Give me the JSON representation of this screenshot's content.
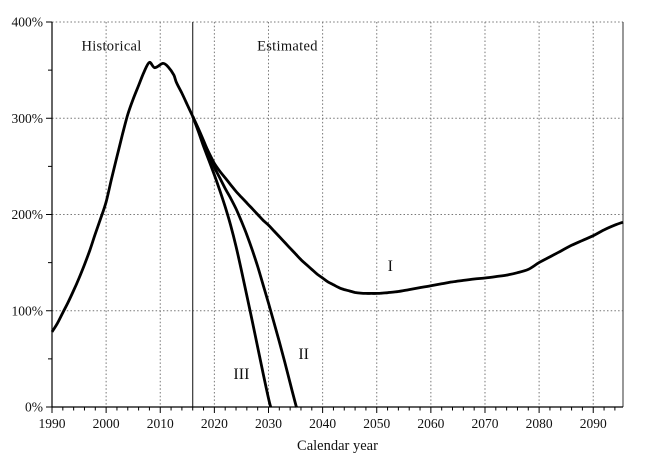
{
  "figure": {
    "background": "#ffffff",
    "labels": {
      "historical": "Historical",
      "estimated": "Estimated",
      "series_I": "I",
      "series_II": "II",
      "series_III": "III"
    }
  },
  "chart_data": {
    "type": "line",
    "title": "",
    "xlabel": "Calendar year",
    "ylabel": "",
    "x_range": [
      1990,
      2095.5
    ],
    "y_range_pct": [
      0,
      400
    ],
    "grid": "dotted",
    "legend": "none",
    "boundary_year": 2016,
    "line_color": "#000000",
    "grid_color": "#777777",
    "x_ticks": [
      {
        "year": 1990,
        "label": "1990"
      },
      {
        "year": 2000,
        "label": "2000"
      },
      {
        "year": 2010,
        "label": "2010"
      },
      {
        "year": 2020,
        "label": "2020"
      },
      {
        "year": 2030,
        "label": "2030"
      },
      {
        "year": 2040,
        "label": "2040"
      },
      {
        "year": 2050,
        "label": "2050"
      },
      {
        "year": 2060,
        "label": "2060"
      },
      {
        "year": 2070,
        "label": "2070"
      },
      {
        "year": 2080,
        "label": "2080"
      },
      {
        "year": 2090,
        "label": "2090"
      }
    ],
    "y_ticks": [
      {
        "pct": 0,
        "label": "0%"
      },
      {
        "pct": 100,
        "label": "100%"
      },
      {
        "pct": 200,
        "label": "200%"
      },
      {
        "pct": 300,
        "label": "300%"
      },
      {
        "pct": 400,
        "label": "400%"
      }
    ],
    "x_minor_step": 2,
    "y_minor_step": 50,
    "annotations": [
      {
        "key": "historical",
        "text": "Historical",
        "year": 2001,
        "pct": 374,
        "class": "section"
      },
      {
        "key": "estimated",
        "text": "Estimated",
        "year": 2033.5,
        "pct": 374,
        "class": "section"
      },
      {
        "key": "series_I",
        "text": "I",
        "year": 2052.5,
        "pct": 145,
        "class": "series"
      },
      {
        "key": "series_II",
        "text": "II",
        "year": 2036.5,
        "pct": 54,
        "class": "series"
      },
      {
        "key": "series_III",
        "text": "III",
        "year": 2025,
        "pct": 33,
        "class": "series"
      }
    ],
    "series": [
      {
        "name": "Historical",
        "points": [
          [
            1990,
            78
          ],
          [
            1991,
            87
          ],
          [
            1992,
            98
          ],
          [
            1993,
            109
          ],
          [
            1994,
            121
          ],
          [
            1995,
            134
          ],
          [
            1996,
            148
          ],
          [
            1997,
            163
          ],
          [
            1998,
            180
          ],
          [
            1999,
            196
          ],
          [
            2000,
            213
          ],
          [
            2001,
            237
          ],
          [
            2002,
            260
          ],
          [
            2003,
            283
          ],
          [
            2004,
            304
          ],
          [
            2005,
            320
          ],
          [
            2006,
            334
          ],
          [
            2007,
            348
          ],
          [
            2008,
            358
          ],
          [
            2009,
            352.5
          ],
          [
            2010.5,
            357
          ],
          [
            2011.5,
            353
          ],
          [
            2012.5,
            345
          ],
          [
            2013,
            337
          ],
          [
            2014,
            326
          ],
          [
            2015,
            314
          ],
          [
            2016,
            302
          ]
        ]
      },
      {
        "name": "I",
        "points": [
          [
            2016,
            302
          ],
          [
            2017,
            289
          ],
          [
            2018,
            276
          ],
          [
            2019,
            264
          ],
          [
            2020,
            253
          ],
          [
            2021,
            245
          ],
          [
            2022,
            238
          ],
          [
            2023,
            231
          ],
          [
            2024,
            224
          ],
          [
            2025,
            218
          ],
          [
            2026,
            212
          ],
          [
            2027,
            206
          ],
          [
            2028,
            200
          ],
          [
            2029,
            194
          ],
          [
            2030,
            189
          ],
          [
            2031,
            183
          ],
          [
            2032,
            177
          ],
          [
            2033,
            171
          ],
          [
            2034,
            165
          ],
          [
            2035,
            159
          ],
          [
            2036,
            153
          ],
          [
            2037,
            148
          ],
          [
            2038,
            143
          ],
          [
            2039,
            138
          ],
          [
            2040,
            134
          ],
          [
            2041,
            130
          ],
          [
            2042,
            127
          ],
          [
            2043,
            124
          ],
          [
            2044,
            122
          ],
          [
            2045,
            120.5
          ],
          [
            2046,
            119
          ],
          [
            2047,
            118.3
          ],
          [
            2048,
            118
          ],
          [
            2049,
            118
          ],
          [
            2050,
            118
          ],
          [
            2051,
            118.3
          ],
          [
            2052,
            118.8
          ],
          [
            2054,
            120
          ],
          [
            2056,
            122
          ],
          [
            2058,
            124
          ],
          [
            2060,
            126
          ],
          [
            2062,
            128
          ],
          [
            2064,
            130
          ],
          [
            2066,
            131.5
          ],
          [
            2068,
            133
          ],
          [
            2070,
            134
          ],
          [
            2072,
            135.5
          ],
          [
            2074,
            137
          ],
          [
            2076,
            139.5
          ],
          [
            2078,
            143
          ],
          [
            2080,
            150
          ],
          [
            2082,
            156
          ],
          [
            2084,
            162
          ],
          [
            2086,
            168
          ],
          [
            2088,
            173
          ],
          [
            2090,
            178
          ],
          [
            2092,
            184
          ],
          [
            2094,
            189
          ],
          [
            2095.5,
            192
          ]
        ]
      },
      {
        "name": "II",
        "points": [
          [
            2016,
            302
          ],
          [
            2017,
            290
          ],
          [
            2018,
            277
          ],
          [
            2019,
            263
          ],
          [
            2020,
            249
          ],
          [
            2021,
            238
          ],
          [
            2022,
            227
          ],
          [
            2023,
            217
          ],
          [
            2024,
            206
          ],
          [
            2025,
            193
          ],
          [
            2026,
            179
          ],
          [
            2027,
            163
          ],
          [
            2028,
            146
          ],
          [
            2029,
            127
          ],
          [
            2030,
            108
          ],
          [
            2031,
            88
          ],
          [
            2032,
            68
          ],
          [
            2033,
            47
          ],
          [
            2034,
            25
          ],
          [
            2035,
            3
          ],
          [
            2035.2,
            0
          ]
        ]
      },
      {
        "name": "III",
        "points": [
          [
            2016,
            302
          ],
          [
            2017,
            287
          ],
          [
            2018,
            271
          ],
          [
            2019,
            256
          ],
          [
            2020,
            241
          ],
          [
            2021,
            225
          ],
          [
            2022,
            208
          ],
          [
            2023,
            189
          ],
          [
            2024,
            167
          ],
          [
            2025,
            142
          ],
          [
            2026,
            116
          ],
          [
            2027,
            89
          ],
          [
            2028,
            62
          ],
          [
            2029,
            35
          ],
          [
            2030,
            9
          ],
          [
            2030.4,
            0
          ]
        ]
      }
    ]
  }
}
